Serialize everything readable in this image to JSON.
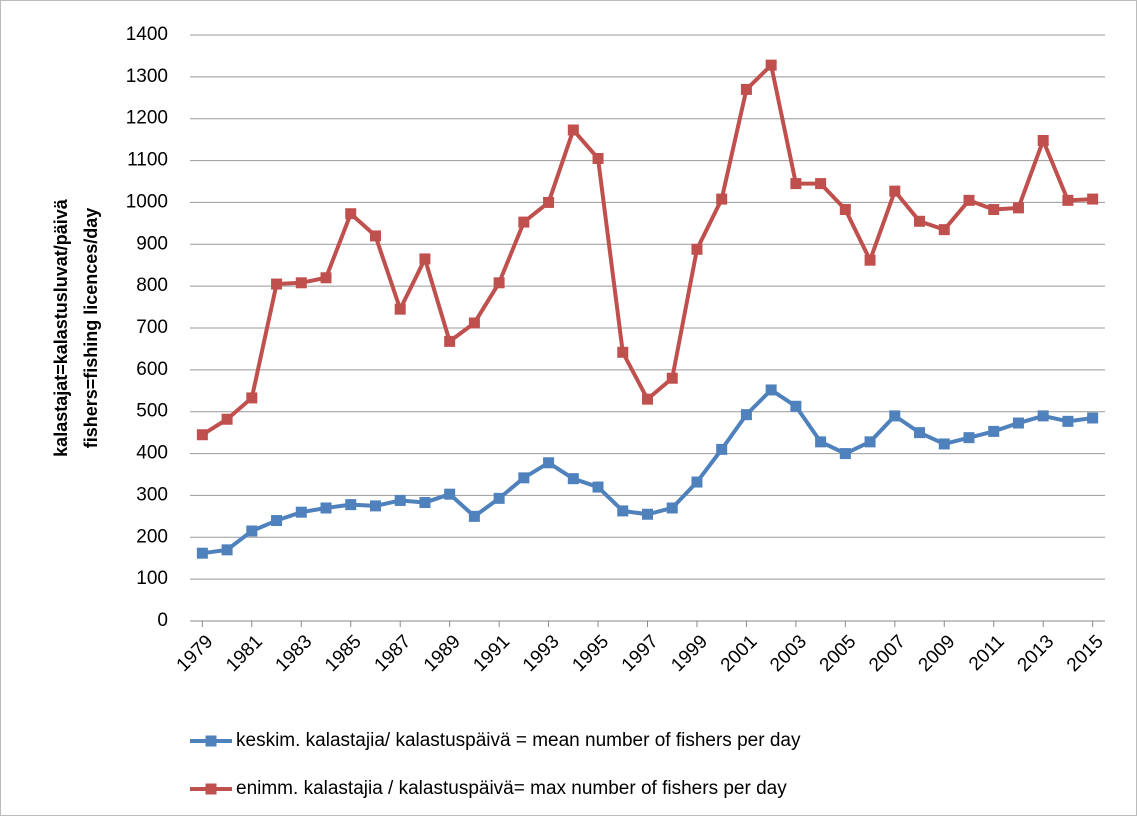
{
  "chart_data": {
    "type": "line",
    "ylabel": [
      "kalastajat=kalastusluvat/päivä",
      "fishers=fishing licences/day"
    ],
    "x": [
      1979,
      1980,
      1981,
      1982,
      1983,
      1984,
      1985,
      1986,
      1987,
      1988,
      1989,
      1990,
      1991,
      1992,
      1993,
      1994,
      1995,
      1996,
      1997,
      1998,
      1999,
      2000,
      2001,
      2002,
      2003,
      2004,
      2005,
      2006,
      2007,
      2008,
      2009,
      2010,
      2011,
      2012,
      2013,
      2014,
      2015
    ],
    "xlim": [
      1978.5,
      2015.5
    ],
    "xticks": [
      1979,
      1981,
      1983,
      1985,
      1987,
      1989,
      1991,
      1993,
      1995,
      1997,
      1999,
      2001,
      2003,
      2005,
      2007,
      2009,
      2011,
      2013,
      2015
    ],
    "ylim": [
      0,
      1400
    ],
    "yticks": [
      0,
      100,
      200,
      300,
      400,
      500,
      600,
      700,
      800,
      900,
      1000,
      1100,
      1200,
      1300,
      1400
    ],
    "grid": true,
    "legend": "bottom",
    "series": [
      {
        "name": "keskim. kalastajia/ kalastuspäivä = mean number of fishers per day",
        "color": "#4f81bd",
        "values": [
          162,
          170,
          215,
          240,
          260,
          270,
          278,
          275,
          288,
          283,
          303,
          250,
          293,
          342,
          378,
          340,
          320,
          263,
          255,
          270,
          332,
          410,
          493,
          552,
          513,
          428,
          400,
          428,
          490,
          450,
          423,
          438,
          453,
          473,
          490,
          477,
          485
        ]
      },
      {
        "name": "enimm. kalastajia / kalastuspäivä= max number of  fishers per day",
        "color": "#c0504d",
        "values": [
          445,
          482,
          533,
          805,
          808,
          820,
          973,
          920,
          745,
          865,
          668,
          712,
          808,
          953,
          1000,
          1173,
          1105,
          642,
          530,
          580,
          888,
          1008,
          1270,
          1328,
          1045,
          1045,
          983,
          862,
          1027,
          955,
          935,
          1005,
          983,
          987,
          1148,
          1005,
          1008
        ]
      }
    ]
  }
}
